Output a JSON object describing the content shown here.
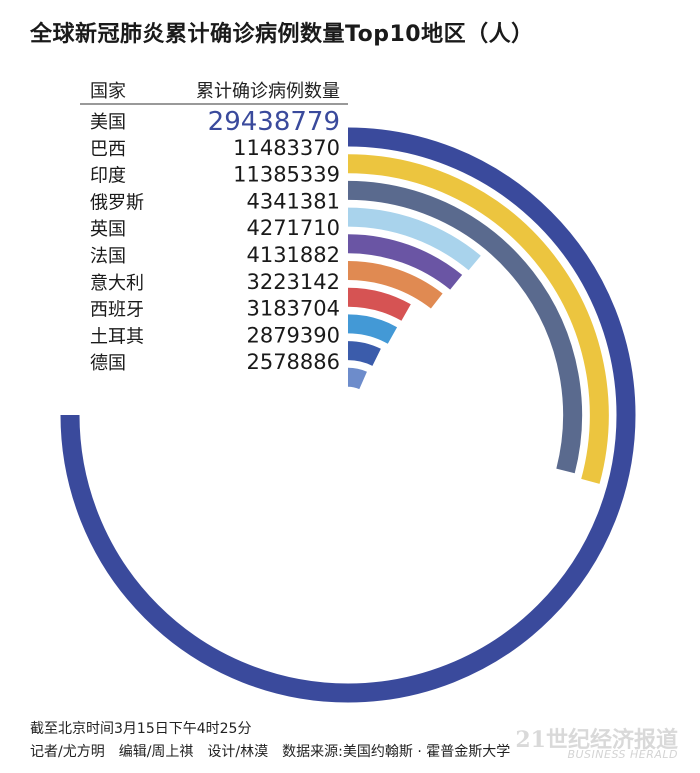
{
  "title": "全球新冠肺炎累计确诊病例数量Top10地区（人）",
  "chart_data": {
    "type": "bar",
    "layout": "radial",
    "title": "全球新冠肺炎累计确诊病例数量Top10地区（人）",
    "column_headers": [
      "国家",
      "累计确诊病例数量"
    ],
    "categories": [
      "美国",
      "巴西",
      "印度",
      "俄罗斯",
      "英国",
      "法国",
      "意大利",
      "西班牙",
      "土耳其",
      "德国"
    ],
    "values": [
      29438779,
      11483370,
      11385339,
      4341381,
      4271710,
      4131882,
      3223142,
      3183704,
      2879390,
      2578886
    ],
    "value_labels": [
      "29438779",
      "11483370",
      "11385339",
      "4341381",
      "4271710",
      "4131882",
      "3223142",
      "3183704",
      "2879390",
      "2578886"
    ],
    "colors": [
      "#3a4a9c",
      "#ecc53f",
      "#5a6a8e",
      "#a9d3ec",
      "#6a55a4",
      "#e08a52",
      "#d65353",
      "#4399d6",
      "#3b5cab",
      "#6d8ccb"
    ],
    "highlight_color": "#3a4a9c"
  },
  "footer": {
    "line1": "截至北京时间3月15日下午4时25分",
    "line2": "记者/尤方明　编辑/周上祺　设计/林漠　数据来源:美国约翰斯 · 霍普金斯大学"
  },
  "brand": {
    "name": "21世纪经济报道",
    "subtitle": "BUSINESS HERALD"
  }
}
